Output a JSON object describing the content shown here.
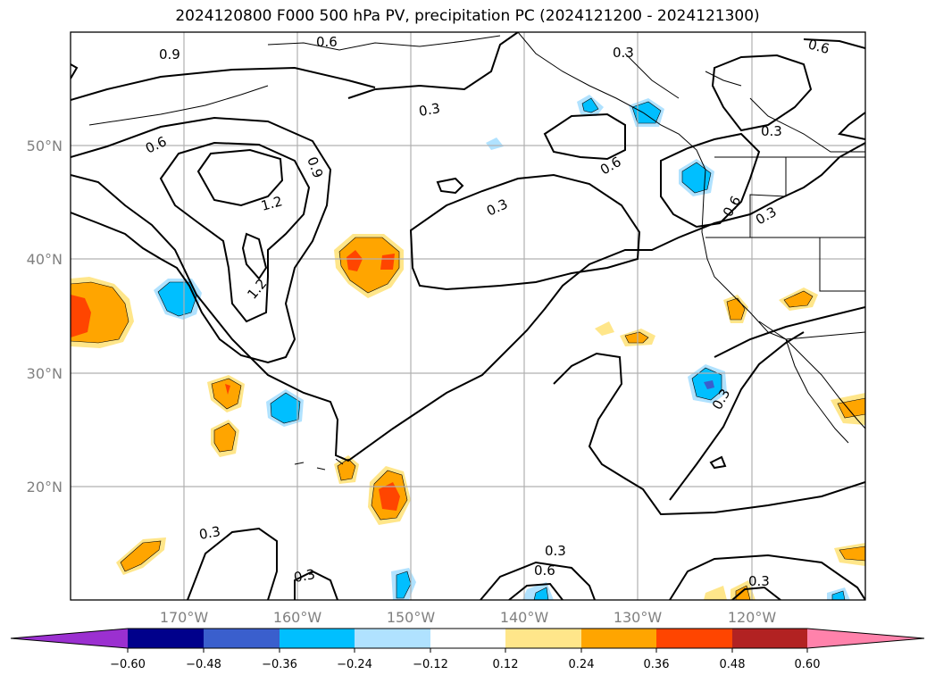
{
  "title": "2024120800 F000 500 hPa PV, precipitation PC (2024121200 - 2024121300)",
  "map": {
    "lon_ticks": [
      "170°W",
      "160°W",
      "150°W",
      "140°W",
      "130°W",
      "120°W"
    ],
    "lat_ticks": [
      "50°N",
      "40°N",
      "30°N",
      "20°N"
    ],
    "contour_labels": [
      "0.9",
      "0.6",
      "0.3",
      "0.3",
      "0.6",
      "0.9",
      "1.2",
      "1.2",
      "0.3",
      "0.6",
      "0.3",
      "0.6",
      "0.3",
      "0.6",
      "0.3",
      "0.3",
      "0.3",
      "0.6",
      "0.3",
      "0.3"
    ]
  },
  "colorbar": {
    "ticks": [
      "−0.60",
      "−0.48",
      "−0.36",
      "−0.24",
      "−0.12",
      "0.12",
      "0.24",
      "0.36",
      "0.48",
      "0.60"
    ],
    "colors": [
      "#9b30d0",
      "#00008b",
      "#3a5fcd",
      "#00bfff",
      "#b0e2ff",
      "#ffffff",
      "#ffe68a",
      "#ffa500",
      "#ff4500",
      "#b22222",
      "#ff82ab"
    ]
  },
  "fill_colors": {
    "pos_light": "#ffe68a",
    "pos_mid": "#ffa500",
    "pos_high": "#ff4500",
    "neg_light": "#b0e2ff",
    "neg_mid": "#00bfff",
    "neg_high": "#3a5fcd"
  }
}
